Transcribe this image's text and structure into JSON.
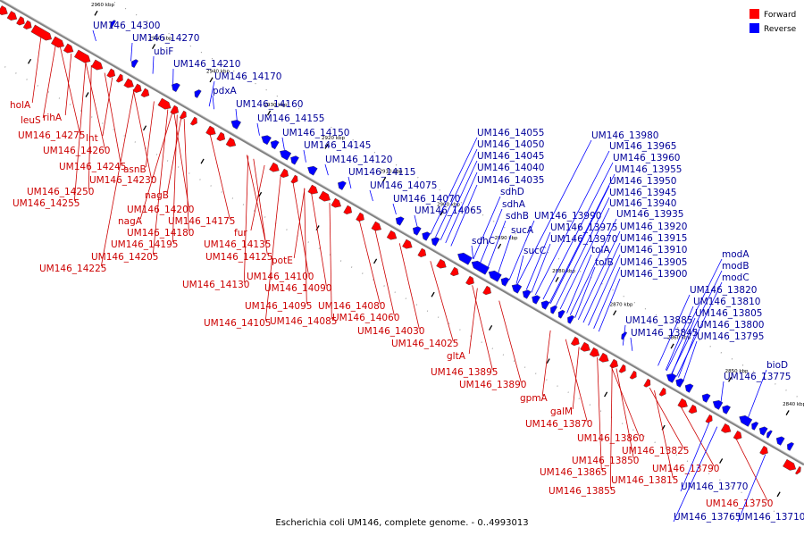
{
  "caption": "Escherichia coli UM146, complete genome. - 0..4993013",
  "legend": [
    {
      "label": "Forward",
      "color": "#ff0000"
    },
    {
      "label": "Reverse",
      "color": "#0000ff"
    }
  ],
  "colors": {
    "forward": "#ff0000",
    "reverse": "#0000ff",
    "forward_label": "#cc0000",
    "reverse_label": "#000099",
    "backbone": "#808080"
  },
  "ticks": [
    "2970 kbp",
    "2960 kbp",
    "2950 kbp",
    "2940 kbp",
    "2930 kbp",
    "2920 kbp",
    "2910 kbp",
    "2900 kbp",
    "2890 kbp",
    "2880 kbp",
    "2870 kbp",
    "2860 kbp",
    "2850 kbp",
    "2840 kbp"
  ],
  "forward_labels": [
    "holA",
    "leuS",
    "rihA",
    "UM146_14275",
    "lnt",
    "UM146_14260",
    "UM146_14245",
    "asnB",
    "UM146_14230",
    "UM146_14250",
    "UM146_14255",
    "nagB",
    "UM146_14200",
    "nagA",
    "UM146_14175",
    "UM146_14180",
    "UM146_14195",
    "UM146_14205",
    "UM146_14225",
    "fur",
    "UM146_14135",
    "UM146_14125",
    "potE",
    "UM146_14130",
    "UM146_14100",
    "UM146_14090",
    "UM146_14080",
    "UM146_14095",
    "UM146_14060",
    "UM146_14105",
    "UM146_14085",
    "UM146_14030",
    "UM146_14025",
    "gltA",
    "UM146_13895",
    "UM146_13890",
    "gpmA",
    "galM",
    "UM146_13870",
    "UM146_13860",
    "UM146_13850",
    "UM146_13825",
    "UM146_13865",
    "UM146_13815",
    "UM146_13790",
    "UM146_13855",
    "UM146_13750"
  ],
  "reverse_labels": [
    "UM146_14300",
    "UM146_14270",
    "ubiF",
    "UM146_14210",
    "UM146_14170",
    "pdxA",
    "UM146_14160",
    "UM146_14155",
    "UM146_14150",
    "UM146_14145",
    "UM146_14120",
    "UM146_14115",
    "UM146_14075",
    "UM146_14070",
    "UM146_14065",
    "UM146_14055",
    "UM146_14050",
    "UM146_14045",
    "UM146_14040",
    "UM146_14035",
    "sdhD",
    "sdhA",
    "sdhB",
    "sdhC",
    "sucA",
    "sucC",
    "UM146_13990",
    "UM146_13975",
    "UM146_13970",
    "tolA",
    "tolB",
    "UM146_13980",
    "UM146_13965",
    "UM146_13960",
    "UM146_13955",
    "UM146_13950",
    "UM146_13945",
    "UM146_13940",
    "UM146_13935",
    "UM146_13920",
    "UM146_13915",
    "UM146_13910",
    "UM146_13905",
    "UM146_13900",
    "modA",
    "modB",
    "modC",
    "UM146_13820",
    "UM146_13810",
    "UM146_13805",
    "UM146_13800",
    "UM146_13795",
    "UM146_13885",
    "UM146_13845",
    "bioD",
    "UM146_13775",
    "UM146_13770",
    "UM146_13765",
    "UM146_13710"
  ]
}
